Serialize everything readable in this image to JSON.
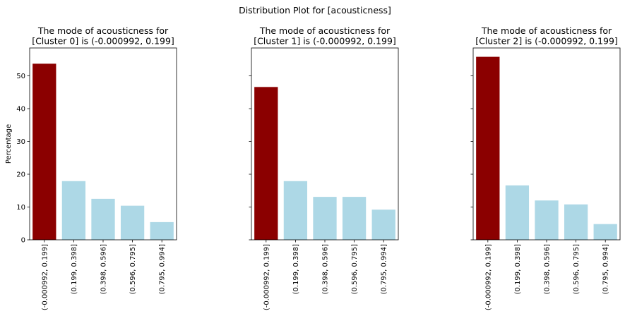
{
  "figure": {
    "suptitle": "Distribution Plot for [acousticness]",
    "colors": {
      "mode": "#8b0000",
      "other": "#add8e6"
    }
  },
  "chart_data": [
    {
      "type": "bar",
      "title_lines": [
        "The mode of acousticness for",
        "[Cluster 0] is (-0.000992, 0.199]"
      ],
      "xlabel": "",
      "ylabel": "Percentage",
      "ylim": [
        0,
        58.5
      ],
      "yticks": [
        "0",
        "10",
        "20",
        "30",
        "40",
        "50"
      ],
      "categories": [
        "(-0.000992, 0.199]",
        "(0.199, 0.398]",
        "(0.398, 0.596]",
        "(0.596, 0.795]",
        "(0.795, 0.994]"
      ],
      "values": [
        53.7,
        17.9,
        12.5,
        10.4,
        5.4
      ],
      "mode_index": 0
    },
    {
      "type": "bar",
      "title_lines": [
        "The mode of acousticness for",
        "[Cluster 1] is (-0.000992, 0.199]"
      ],
      "xlabel": "",
      "ylabel": "",
      "ylim": [
        0,
        58.5
      ],
      "yticks": [
        "0",
        "10",
        "20",
        "30",
        "40",
        "50"
      ],
      "categories": [
        "(-0.000992, 0.199]",
        "(0.199, 0.398]",
        "(0.398, 0.596]",
        "(0.596, 0.795]",
        "(0.795, 0.994]"
      ],
      "values": [
        46.6,
        17.9,
        13.1,
        13.1,
        9.2
      ],
      "mode_index": 0
    },
    {
      "type": "bar",
      "title_lines": [
        "The mode of acousticness for",
        "[Cluster 2] is (-0.000992, 0.199]"
      ],
      "xlabel": "",
      "ylabel": "",
      "ylim": [
        0,
        58.5
      ],
      "yticks": [
        "0",
        "10",
        "20",
        "30",
        "40",
        "50"
      ],
      "categories": [
        "(-0.000992, 0.199]",
        "(0.199, 0.398]",
        "(0.398, 0.596]",
        "(0.596, 0.795]",
        "(0.795, 0.994]"
      ],
      "values": [
        55.8,
        16.6,
        12.0,
        10.8,
        4.8
      ],
      "mode_index": 0
    }
  ]
}
